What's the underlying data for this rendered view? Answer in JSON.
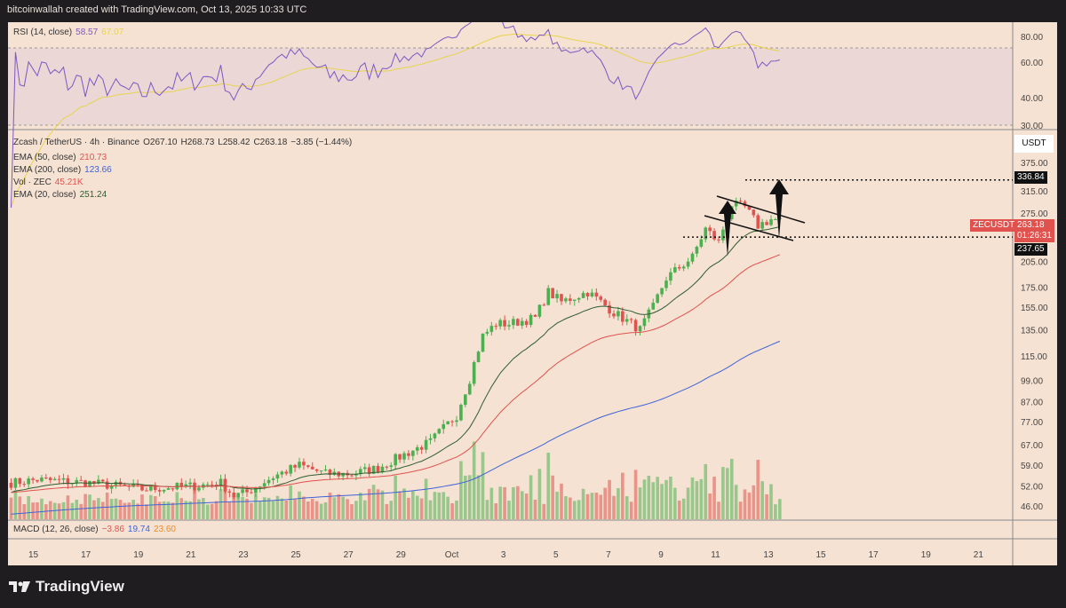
{
  "header": "bitcoinwallah created with TradingView.com, Oct 13, 2025 10:33 UTC",
  "rsi": {
    "label": "RSI (14, close)",
    "value": "58.57",
    "ma_value": "67.07",
    "ticks": [
      "80.00",
      "60.00",
      "40.00",
      "30.00"
    ],
    "line_color": "#7e57c2",
    "ma_color": "#e8d44d"
  },
  "price": {
    "symbol": "Zcash / TetherUS · 4h · Binance",
    "o": "O267.10",
    "h": "H268.73",
    "l": "L258.42",
    "c": "C263.18",
    "chg": "−3.85 (−1.44%)",
    "currency": "USDT",
    "ticker": "ZECUSDT",
    "last": "263.18",
    "countdown": "01:26:31",
    "target": "336.84",
    "support": "237.65",
    "up_color": "#4caf50",
    "down_color": "#e0524d"
  },
  "indicators": [
    {
      "label": "EMA (50, close)",
      "value": "210.73",
      "color": "#e0524d"
    },
    {
      "label": "EMA (200, close)",
      "value": "123.66",
      "color": "#3f63d8"
    },
    {
      "label": "Vol · ZEC",
      "value": "45.21K",
      "color": "#e0524d"
    },
    {
      "label": "EMA (20, close)",
      "value": "251.24",
      "color": "#2e5d2e"
    }
  ],
  "macd": {
    "label": "MACD (12, 26, close)",
    "v1": "−3.86",
    "v2": "19.74",
    "v3": "23.60"
  },
  "price_ticks": [
    375,
    315,
    275,
    205,
    175,
    155,
    135,
    115,
    99,
    87,
    77,
    67,
    59,
    52,
    46
  ],
  "x_ticks": [
    "15",
    "17",
    "19",
    "21",
    "23",
    "25",
    "27",
    "29",
    "Oct",
    "3",
    "5",
    "7",
    "9",
    "11",
    "13",
    "15",
    "17",
    "19",
    "21"
  ],
  "chart_data": {
    "type": "candlestick",
    "scale": "log",
    "x_unit": "days from Sep 14 2025",
    "path": [
      [
        0,
        53
      ],
      [
        1,
        54
      ],
      [
        3,
        53
      ],
      [
        5,
        51
      ],
      [
        7,
        52
      ],
      [
        8,
        53
      ],
      [
        8.5,
        49
      ],
      [
        9,
        50
      ],
      [
        10,
        55
      ],
      [
        11,
        59
      ],
      [
        12,
        56
      ],
      [
        13,
        56
      ],
      [
        14,
        58
      ],
      [
        15,
        63
      ],
      [
        16,
        68
      ],
      [
        17,
        80
      ],
      [
        17.5,
        100
      ],
      [
        18,
        130
      ],
      [
        18.5,
        140
      ],
      [
        19,
        140
      ],
      [
        20,
        145
      ],
      [
        20.5,
        170
      ],
      [
        21,
        160
      ],
      [
        22,
        170
      ],
      [
        23,
        150
      ],
      [
        24,
        135
      ],
      [
        24.5,
        155
      ],
      [
        25,
        185
      ],
      [
        26,
        210
      ],
      [
        26.5,
        250
      ],
      [
        27,
        230
      ],
      [
        27.5,
        290
      ],
      [
        28,
        285
      ],
      [
        28.5,
        255
      ],
      [
        29,
        265
      ],
      [
        29.4,
        263
      ]
    ]
  },
  "brand": "TradingView"
}
